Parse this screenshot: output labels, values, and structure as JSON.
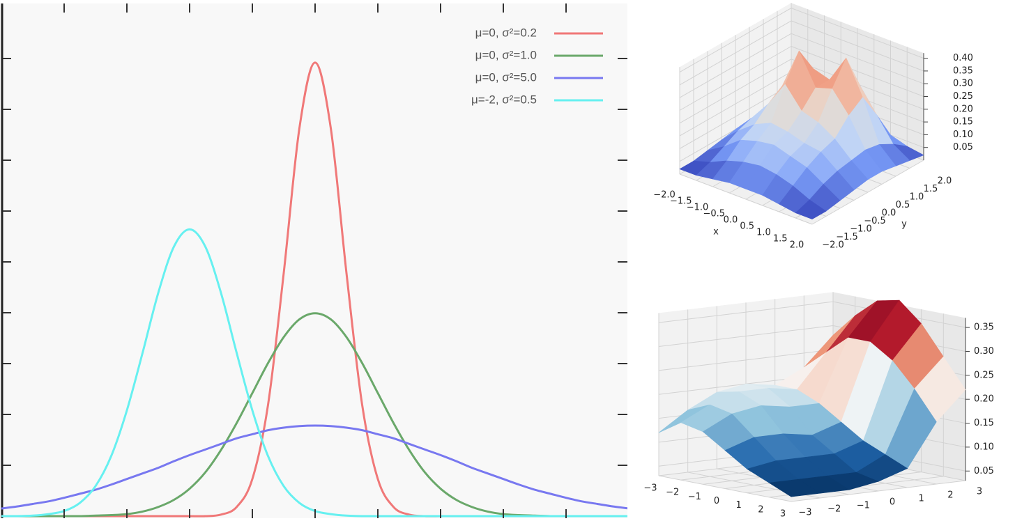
{
  "chart_data": [
    {
      "type": "line",
      "x": [
        -5,
        -4.75,
        -4.5,
        -4.25,
        -4,
        -3.75,
        -3.5,
        -3.25,
        -3,
        -2.75,
        -2.5,
        -2.25,
        -2,
        -1.75,
        -1.5,
        -1.25,
        -1,
        -0.75,
        -0.5,
        -0.25,
        0,
        0.25,
        0.5,
        0.75,
        1,
        1.25,
        1.5,
        1.75,
        2,
        2.25,
        2.5,
        2.75,
        3,
        3.25,
        3.5,
        3.75,
        4,
        4.25,
        4.5,
        4.75,
        5
      ],
      "series": [
        {
          "name": "μ=0, σ²=0.2",
          "color": "#f07878",
          "values": [
            0,
            0,
            0,
            0,
            0,
            0,
            0,
            0,
            0,
            0,
            0,
            0,
            0,
            0,
            0.003,
            0.018,
            0.073,
            0.219,
            0.478,
            0.763,
            0.892,
            0.763,
            0.478,
            0.219,
            0.073,
            0.018,
            0.003,
            0,
            0,
            0,
            0,
            0,
            0,
            0,
            0,
            0,
            0,
            0,
            0,
            0,
            0
          ]
        },
        {
          "name": "μ=0, σ²=1.0",
          "color": "#6aa86a",
          "values": [
            0,
            0,
            0,
            0,
            0,
            0,
            0.001,
            0.002,
            0.004,
            0.009,
            0.018,
            0.032,
            0.054,
            0.086,
            0.13,
            0.183,
            0.242,
            0.301,
            0.352,
            0.387,
            0.399,
            0.387,
            0.352,
            0.301,
            0.242,
            0.183,
            0.13,
            0.086,
            0.054,
            0.032,
            0.018,
            0.009,
            0.004,
            0.002,
            0.001,
            0,
            0,
            0,
            0,
            0,
            0
          ]
        },
        {
          "name": "μ=0, σ²=5.0",
          "color": "#7878f0",
          "values": [
            0.015,
            0.019,
            0.024,
            0.029,
            0.036,
            0.044,
            0.052,
            0.062,
            0.073,
            0.084,
            0.095,
            0.108,
            0.12,
            0.131,
            0.142,
            0.153,
            0.161,
            0.169,
            0.174,
            0.177,
            0.178,
            0.177,
            0.174,
            0.169,
            0.161,
            0.153,
            0.142,
            0.131,
            0.12,
            0.108,
            0.095,
            0.084,
            0.073,
            0.062,
            0.052,
            0.044,
            0.036,
            0.029,
            0.024,
            0.019,
            0.015
          ]
        },
        {
          "name": "μ=-2, σ²=0.5",
          "color": "#66f0f0",
          "values": [
            0,
            0,
            0.001,
            0.004,
            0.01,
            0.026,
            0.059,
            0.118,
            0.208,
            0.321,
            0.439,
            0.53,
            0.564,
            0.53,
            0.439,
            0.321,
            0.208,
            0.118,
            0.059,
            0.026,
            0.01,
            0.004,
            0.001,
            0,
            0,
            0,
            0,
            0,
            0,
            0,
            0,
            0,
            0,
            0,
            0,
            0,
            0,
            0,
            0,
            0,
            0
          ]
        }
      ],
      "xlim": [
        -5,
        5
      ],
      "ylim": [
        0,
        1
      ],
      "xticks": [
        -4,
        -3,
        -2,
        -1,
        0,
        1,
        2,
        3,
        4
      ],
      "yticks": [
        0.1,
        0.2,
        0.3,
        0.4,
        0.5,
        0.6,
        0.7,
        0.8,
        0.9
      ],
      "legend": "upper right"
    },
    {
      "type": "surface3d",
      "colormap": "coolwarm",
      "x_label": "x",
      "y_label": "y",
      "x": [
        -2,
        -1.5,
        -1,
        -0.5,
        0,
        0.5,
        1,
        1.5,
        2
      ],
      "y": [
        -2,
        -1.5,
        -1,
        -0.5,
        0,
        0.5,
        1,
        1.5,
        2
      ],
      "z": [
        [
          0.02,
          0.02,
          0.03,
          0.04,
          0.05,
          0.04,
          0.03,
          0.02,
          0.02
        ],
        [
          0.02,
          0.04,
          0.07,
          0.1,
          0.12,
          0.12,
          0.09,
          0.05,
          0.03
        ],
        [
          0.03,
          0.07,
          0.12,
          0.15,
          0.2,
          0.24,
          0.18,
          0.1,
          0.04
        ],
        [
          0.04,
          0.09,
          0.14,
          0.18,
          0.3,
          0.4,
          0.3,
          0.15,
          0.05
        ],
        [
          0.04,
          0.1,
          0.15,
          0.17,
          0.22,
          0.28,
          0.28,
          0.18,
          0.06
        ],
        [
          0.04,
          0.09,
          0.13,
          0.15,
          0.2,
          0.3,
          0.39,
          0.25,
          0.06
        ],
        [
          0.03,
          0.07,
          0.11,
          0.14,
          0.16,
          0.22,
          0.26,
          0.16,
          0.05
        ],
        [
          0.02,
          0.04,
          0.07,
          0.09,
          0.1,
          0.11,
          0.1,
          0.07,
          0.03
        ],
        [
          0.02,
          0.02,
          0.03,
          0.04,
          0.05,
          0.05,
          0.04,
          0.03,
          0.02
        ]
      ],
      "xlim": [
        -2,
        2
      ],
      "ylim": [
        -2,
        2
      ],
      "zlim": [
        0,
        0.42
      ],
      "xticks": [
        {
          "value": -2,
          "label": "−2.0"
        },
        {
          "value": -1.5,
          "label": "−1.5"
        },
        {
          "value": -1,
          "label": "−1.0"
        },
        {
          "value": -0.5,
          "label": "−0.5"
        },
        {
          "value": 0,
          "label": "0.0"
        },
        0.5,
        {
          "value": 1,
          "label": "1.0"
        },
        1.5,
        {
          "value": 2,
          "label": "2.0"
        }
      ],
      "yticks": [
        {
          "value": -2,
          "label": "−2.0"
        },
        {
          "value": -1.5,
          "label": "−1.5"
        },
        {
          "value": -1,
          "label": "−1.0"
        },
        {
          "value": -0.5,
          "label": "−0.5"
        },
        {
          "value": 0,
          "label": "0.0"
        },
        0.5,
        {
          "value": 1,
          "label": "1.0"
        },
        1.5,
        {
          "value": 2,
          "label": "2.0"
        }
      ],
      "zticks": [
        0.05,
        {
          "value": 0.1,
          "label": "0.10"
        },
        0.15,
        {
          "value": 0.2,
          "label": "0.20"
        },
        0.25,
        {
          "value": 0.3,
          "label": "0.30"
        },
        0.35,
        {
          "value": 0.4,
          "label": "0.40"
        }
      ]
    },
    {
      "type": "surface3d",
      "colormap": "RdBu_r",
      "x": [
        -3,
        -2,
        -1,
        0,
        1,
        2,
        3
      ],
      "y": [
        -3,
        -2,
        -1,
        0,
        1,
        2,
        3
      ],
      "z": [
        [
          0.12,
          0.16,
          0.19,
          0.2,
          0.19,
          0.22,
          0.28
        ],
        [
          0.15,
          0.18,
          0.2,
          0.2,
          0.19,
          0.26,
          0.33
        ],
        [
          0.14,
          0.17,
          0.18,
          0.17,
          0.17,
          0.3,
          0.37
        ],
        [
          0.11,
          0.13,
          0.13,
          0.12,
          0.14,
          0.3,
          0.38
        ],
        [
          0.08,
          0.09,
          0.09,
          0.09,
          0.11,
          0.27,
          0.34
        ],
        [
          0.06,
          0.06,
          0.06,
          0.06,
          0.09,
          0.22,
          0.28
        ],
        [
          0.04,
          0.04,
          0.04,
          0.05,
          0.07,
          0.16,
          0.22
        ]
      ],
      "xlim": [
        -3,
        3
      ],
      "ylim": [
        -3,
        3
      ],
      "zlim": [
        0.03,
        0.37
      ],
      "xticks": [
        {
          "value": -3,
          "label": "−3"
        },
        {
          "value": -2,
          "label": "−2"
        },
        {
          "value": -1,
          "label": "−1"
        },
        0,
        1,
        2,
        3
      ],
      "yticks": [
        {
          "value": -3,
          "label": "−3"
        },
        {
          "value": -2,
          "label": "−2"
        },
        {
          "value": -1,
          "label": "−1"
        },
        0,
        1,
        2,
        3
      ],
      "zticks": [
        0.05,
        {
          "value": 0.1,
          "label": "0.10"
        },
        0.15,
        {
          "value": 0.2,
          "label": "0.20"
        },
        0.25,
        {
          "value": 0.3,
          "label": "0.30"
        },
        0.35
      ]
    }
  ]
}
